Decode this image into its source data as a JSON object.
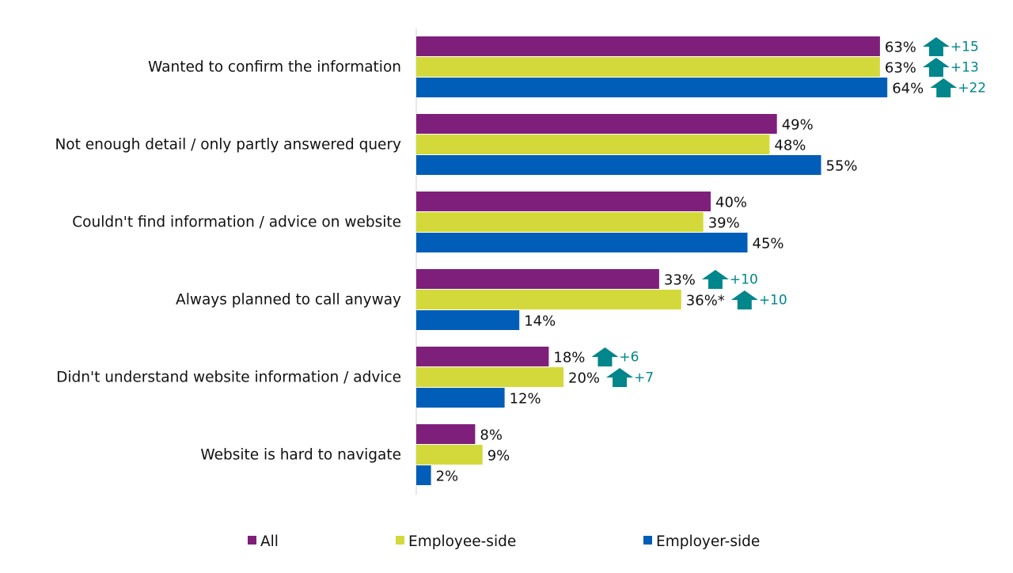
{
  "chart_data": {
    "type": "bar",
    "orientation": "horizontal",
    "categories": [
      "Wanted to confirm the information",
      "Not enough detail / only partly answered query",
      "Couldn't find information / advice on website",
      "Always planned to call anyway",
      "Didn't understand website information / advice",
      "Website is hard to navigate"
    ],
    "series": [
      {
        "name": "All",
        "color": "#7F1F7C",
        "values": [
          63,
          49,
          40,
          33,
          18,
          8
        ],
        "labels": [
          "63%",
          "49%",
          "40%",
          "33%",
          "18%",
          "8%"
        ],
        "changes": [
          "+15",
          null,
          null,
          "+10",
          "+6",
          null
        ]
      },
      {
        "name": "Employee-side",
        "color": "#D3D93A",
        "values": [
          63,
          48,
          39,
          36,
          20,
          9
        ],
        "labels": [
          "63%",
          "48%",
          "39%",
          "36%*",
          "20%",
          "9%"
        ],
        "changes": [
          "+13",
          null,
          null,
          "+10",
          "+7",
          null
        ]
      },
      {
        "name": "Employer-side",
        "color": "#005EB8",
        "values": [
          64,
          55,
          45,
          14,
          12,
          2
        ],
        "labels": [
          "64%",
          "55%",
          "45%",
          "14%",
          "12%",
          "2%"
        ],
        "changes": [
          "+22",
          null,
          null,
          null,
          null,
          null
        ]
      }
    ],
    "change_icon": "arrow-up-icon",
    "change_color": "#00868B",
    "xlim": [
      0,
      80
    ],
    "grid": false,
    "legend_position": "bottom"
  }
}
